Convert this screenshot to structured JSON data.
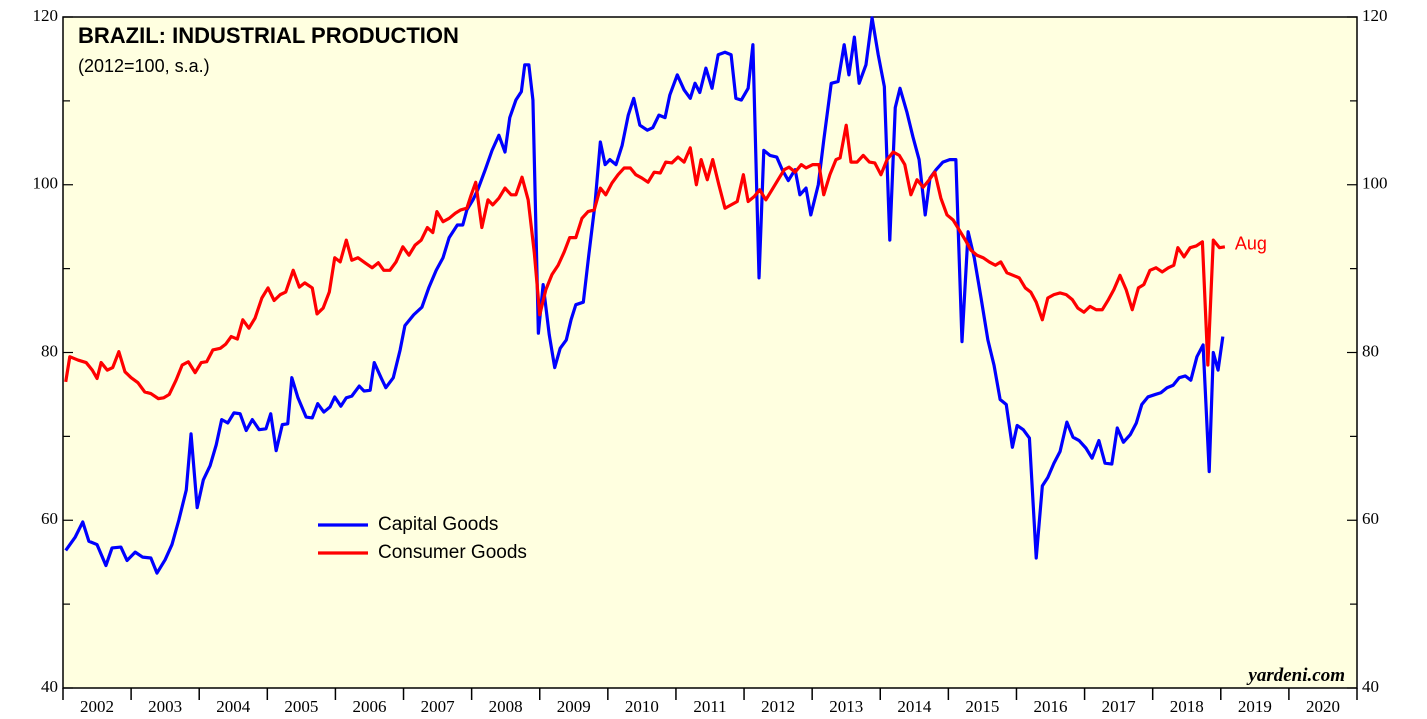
{
  "chart_data": {
    "type": "line",
    "title": "BRAZIL: INDUSTRIAL PRODUCTION",
    "subtitle": "(2012=100, s.a.)",
    "annotation": "Aug",
    "watermark": "yardeni.com",
    "xlim": [
      2002,
      2021
    ],
    "xticks": [
      2002,
      2003,
      2004,
      2005,
      2006,
      2007,
      2008,
      2009,
      2010,
      2011,
      2012,
      2013,
      2014,
      2015,
      2016,
      2017,
      2018,
      2019,
      2020,
      2021
    ],
    "year_labels": [
      "2002",
      "2003",
      "2004",
      "2005",
      "2006",
      "2007",
      "2008",
      "2009",
      "2010",
      "2011",
      "2012",
      "2013",
      "2014",
      "2015",
      "2016",
      "2017",
      "2018",
      "2019",
      "2020"
    ],
    "ylim": [
      40,
      120
    ],
    "yticks": [
      40,
      60,
      80,
      100,
      120
    ],
    "minor_yticks": [
      50,
      70,
      90,
      110
    ],
    "background": "#ffffe0",
    "series": [
      {
        "name": "Capital Goods",
        "color": "#0000ff",
        "x": [
          2002.04,
          2002.18,
          2002.29,
          2002.38,
          2002.5,
          2002.63,
          2002.72,
          2002.85,
          2002.94,
          2003.06,
          2003.17,
          2003.29,
          2003.38,
          2003.5,
          2003.6,
          2003.7,
          2003.81,
          2003.88,
          2003.97,
          2004.06,
          2004.16,
          2004.25,
          2004.33,
          2004.42,
          2004.51,
          2004.6,
          2004.69,
          2004.78,
          2004.88,
          2004.98,
          2005.05,
          2005.13,
          2005.22,
          2005.3,
          2005.36,
          2005.45,
          2005.57,
          2005.66,
          2005.74,
          2005.83,
          2005.92,
          2005.99,
          2006.08,
          2006.16,
          2006.24,
          2006.35,
          2006.42,
          2006.51,
          2006.57,
          2006.67,
          2006.74,
          2006.85,
          2006.95,
          2007.02,
          2007.15,
          2007.27,
          2007.37,
          2007.48,
          2007.58,
          2007.67,
          2007.79,
          2007.87,
          2007.93,
          2008.02,
          2008.09,
          2008.2,
          2008.3,
          2008.4,
          2008.49,
          2008.56,
          2008.65,
          2008.73,
          2008.78,
          2008.84,
          2008.9,
          2008.98,
          2009.05,
          2009.14,
          2009.22,
          2009.3,
          2009.39,
          2009.46,
          2009.53,
          2009.64,
          2009.72,
          2009.81,
          2009.89,
          2009.96,
          2010.03,
          2010.12,
          2010.21,
          2010.3,
          2010.38,
          2010.47,
          2010.58,
          2010.66,
          2010.75,
          2010.84,
          2010.91,
          2011.02,
          2011.12,
          2011.21,
          2011.28,
          2011.35,
          2011.44,
          2011.53,
          2011.62,
          2011.72,
          2011.81,
          2011.88,
          2011.96,
          2012.06,
          2012.13,
          2012.22,
          2012.29,
          2012.38,
          2012.48,
          2012.56,
          2012.65,
          2012.75,
          2012.82,
          2012.91,
          2012.98,
          2013.09,
          2013.17,
          2013.28,
          2013.38,
          2013.47,
          2013.54,
          2013.62,
          2013.69,
          2013.79,
          2013.88,
          2013.97,
          2014.06,
          2014.14,
          2014.22,
          2014.29,
          2014.39,
          2014.48,
          2014.57,
          2014.66,
          2014.73,
          2014.82,
          2014.92,
          2015.02,
          2015.11,
          2015.2,
          2015.29,
          2015.38,
          2015.48,
          2015.58,
          2015.67,
          2015.76,
          2015.85,
          2015.94,
          2016.01,
          2016.1,
          2016.19,
          2016.29,
          2016.38,
          2016.46,
          2016.55,
          2016.64,
          2016.74,
          2016.83,
          2016.92,
          2017.02,
          2017.11,
          2017.21,
          2017.3,
          2017.4,
          2017.48,
          2017.57,
          2017.67,
          2017.76,
          2017.84,
          2017.93,
          2018.04,
          2018.12,
          2018.21,
          2018.3,
          2018.39,
          2018.48,
          2018.56,
          2018.65,
          2018.74,
          2018.83,
          2018.89,
          2018.96,
          2019.03
        ],
        "values": [
          56.4,
          58.0,
          59.8,
          57.5,
          57.1,
          54.6,
          56.7,
          56.8,
          55.2,
          56.2,
          55.6,
          55.5,
          53.7,
          55.3,
          57.1,
          60.0,
          63.6,
          70.3,
          61.5,
          64.8,
          66.5,
          69.0,
          72.0,
          71.6,
          72.8,
          72.7,
          70.7,
          72.0,
          70.8,
          70.9,
          72.7,
          68.3,
          71.4,
          71.5,
          77.0,
          74.6,
          72.3,
          72.2,
          73.9,
          72.9,
          73.5,
          74.7,
          73.6,
          74.6,
          74.8,
          76.0,
          75.4,
          75.5,
          78.8,
          77.0,
          75.8,
          77.0,
          80.3,
          83.2,
          84.5,
          85.4,
          87.7,
          89.8,
          91.3,
          93.7,
          95.2,
          95.2,
          97.0,
          98.2,
          99.4,
          101.8,
          104.1,
          105.9,
          103.9,
          108.0,
          110.1,
          111.1,
          114.3,
          114.3,
          110.1,
          82.3,
          88.1,
          82.1,
          78.2,
          80.5,
          81.5,
          83.9,
          85.7,
          86.0,
          91.6,
          97.6,
          105.1,
          102.4,
          103.0,
          102.4,
          104.7,
          108.3,
          110.3,
          107.1,
          106.5,
          106.8,
          108.3,
          108.0,
          110.7,
          113.1,
          111.3,
          110.3,
          112.1,
          111.0,
          113.9,
          111.5,
          115.5,
          115.8,
          115.5,
          110.3,
          110.1,
          111.5,
          116.7,
          88.9,
          104.1,
          103.5,
          103.3,
          101.8,
          100.5,
          101.8,
          98.8,
          99.6,
          96.4,
          100.0,
          105.3,
          112.1,
          112.3,
          116.7,
          113.1,
          117.6,
          112.1,
          114.3,
          119.9,
          115.5,
          111.7,
          93.4,
          109.2,
          111.5,
          108.7,
          105.7,
          103.0,
          96.4,
          100.8,
          101.8,
          102.7,
          103.0,
          103.0,
          81.3,
          94.4,
          91.3,
          86.5,
          81.5,
          78.5,
          74.4,
          73.8,
          68.7,
          71.3,
          70.8,
          69.8,
          55.5,
          64.1,
          65.1,
          66.8,
          68.2,
          71.7,
          69.9,
          69.5,
          68.6,
          67.4,
          69.5,
          66.8,
          66.7,
          71.0,
          69.3,
          70.2,
          71.6,
          73.8,
          74.7,
          75.0,
          75.2,
          75.8,
          76.1,
          77.0,
          77.2,
          76.7,
          79.5,
          80.9,
          65.8,
          80.0,
          77.9,
          81.9
        ]
      },
      {
        "name": "Consumer Goods",
        "color": "#ff0000",
        "x": [
          2002.04,
          2002.1,
          2002.22,
          2002.34,
          2002.43,
          2002.5,
          2002.56,
          2002.65,
          2002.73,
          2002.82,
          2002.91,
          2003.0,
          2003.1,
          2003.2,
          2003.29,
          2003.4,
          2003.48,
          2003.56,
          2003.66,
          2003.75,
          2003.84,
          2003.94,
          2004.03,
          2004.11,
          2004.2,
          2004.31,
          2004.39,
          2004.47,
          2004.56,
          2004.64,
          2004.73,
          2004.82,
          2004.92,
          2005.01,
          2005.1,
          2005.19,
          2005.27,
          2005.38,
          2005.47,
          2005.55,
          2005.66,
          2005.73,
          2005.82,
          2005.91,
          2005.99,
          2006.07,
          2006.16,
          2006.24,
          2006.33,
          2006.45,
          2006.54,
          2006.63,
          2006.71,
          2006.8,
          2006.89,
          2006.99,
          2007.08,
          2007.17,
          2007.26,
          2007.35,
          2007.43,
          2007.49,
          2007.58,
          2007.67,
          2007.76,
          2007.84,
          2007.93,
          2007.99,
          2008.06,
          2008.15,
          2008.24,
          2008.31,
          2008.4,
          2008.49,
          2008.58,
          2008.65,
          2008.74,
          2008.83,
          2008.92,
          2009.0,
          2009.09,
          2009.18,
          2009.27,
          2009.36,
          2009.44,
          2009.53,
          2009.62,
          2009.71,
          2009.8,
          2009.89,
          2009.97,
          2010.06,
          2010.15,
          2010.24,
          2010.33,
          2010.41,
          2010.5,
          2010.59,
          2010.68,
          2010.77,
          2010.85,
          2010.94,
          2011.03,
          2011.12,
          2011.21,
          2011.3,
          2011.37,
          2011.46,
          2011.54,
          2011.63,
          2011.72,
          2011.81,
          2011.9,
          2011.99,
          2012.06,
          2012.15,
          2012.23,
          2012.32,
          2012.41,
          2012.5,
          2012.59,
          2012.66,
          2012.75,
          2012.84,
          2012.91,
          2013.01,
          2013.1,
          2013.17,
          2013.26,
          2013.35,
          2013.41,
          2013.5,
          2013.57,
          2013.66,
          2013.75,
          2013.84,
          2013.92,
          2014.01,
          2014.1,
          2014.19,
          2014.28,
          2014.36,
          2014.45,
          2014.54,
          2014.63,
          2014.72,
          2014.8,
          2014.89,
          2014.98,
          2015.07,
          2015.16,
          2015.25,
          2015.33,
          2015.42,
          2015.51,
          2015.6,
          2015.69,
          2015.77,
          2015.86,
          2015.95,
          2016.04,
          2016.13,
          2016.21,
          2016.29,
          2016.38,
          2016.46,
          2016.55,
          2016.64,
          2016.73,
          2016.82,
          2016.9,
          2016.99,
          2017.08,
          2017.17,
          2017.26,
          2017.35,
          2017.43,
          2017.52,
          2017.61,
          2017.7,
          2017.79,
          2017.87,
          2017.96,
          2018.05,
          2018.14,
          2018.23,
          2018.31,
          2018.37,
          2018.46,
          2018.55,
          2018.64,
          2018.73,
          2018.81,
          2018.89,
          2018.98,
          2019.06
        ],
        "values": [
          76.5,
          79.5,
          79.1,
          78.8,
          77.9,
          76.9,
          78.8,
          77.9,
          78.2,
          80.1,
          77.7,
          77.0,
          76.4,
          75.3,
          75.1,
          74.5,
          74.6,
          75.0,
          76.7,
          78.5,
          78.9,
          77.6,
          78.8,
          78.9,
          80.3,
          80.5,
          81.0,
          81.9,
          81.6,
          83.9,
          82.9,
          84.1,
          86.5,
          87.7,
          86.2,
          86.9,
          87.2,
          89.8,
          87.8,
          88.3,
          87.7,
          84.6,
          85.3,
          87.2,
          91.3,
          90.8,
          93.4,
          91.0,
          91.3,
          90.6,
          90.1,
          90.7,
          89.8,
          89.8,
          90.8,
          92.6,
          91.6,
          92.8,
          93.4,
          94.9,
          94.3,
          96.8,
          95.6,
          96.0,
          96.6,
          97.0,
          97.2,
          98.7,
          100.3,
          94.9,
          98.2,
          97.6,
          98.4,
          99.6,
          98.8,
          98.8,
          100.9,
          98.2,
          91.9,
          84.5,
          87.5,
          89.3,
          90.4,
          92.0,
          93.7,
          93.7,
          96.0,
          96.8,
          97.0,
          99.6,
          98.8,
          100.2,
          101.2,
          102.0,
          102.0,
          101.2,
          100.8,
          100.3,
          101.5,
          101.4,
          102.7,
          102.6,
          103.3,
          102.7,
          104.4,
          100.0,
          103.0,
          100.6,
          103.0,
          100.0,
          97.2,
          97.6,
          98.0,
          101.2,
          98.0,
          98.6,
          99.4,
          98.2,
          99.4,
          100.6,
          101.8,
          102.1,
          101.5,
          102.4,
          102.0,
          102.4,
          102.4,
          98.8,
          101.2,
          103.0,
          103.2,
          107.1,
          102.7,
          102.7,
          103.5,
          102.7,
          102.6,
          101.2,
          103.0,
          103.9,
          103.5,
          102.4,
          98.8,
          100.6,
          99.7,
          100.6,
          101.5,
          98.4,
          96.4,
          95.8,
          94.6,
          93.4,
          92.2,
          91.6,
          91.3,
          90.8,
          90.4,
          90.8,
          89.5,
          89.2,
          88.9,
          87.7,
          87.2,
          86.0,
          83.9,
          86.5,
          86.9,
          87.1,
          86.9,
          86.3,
          85.3,
          84.8,
          85.5,
          85.1,
          85.1,
          86.3,
          87.5,
          89.2,
          87.5,
          85.1,
          87.7,
          88.1,
          89.8,
          90.1,
          89.6,
          90.1,
          90.4,
          92.5,
          91.4,
          92.5,
          92.7,
          93.2,
          78.5,
          93.4,
          92.5,
          92.6
        ]
      }
    ]
  }
}
